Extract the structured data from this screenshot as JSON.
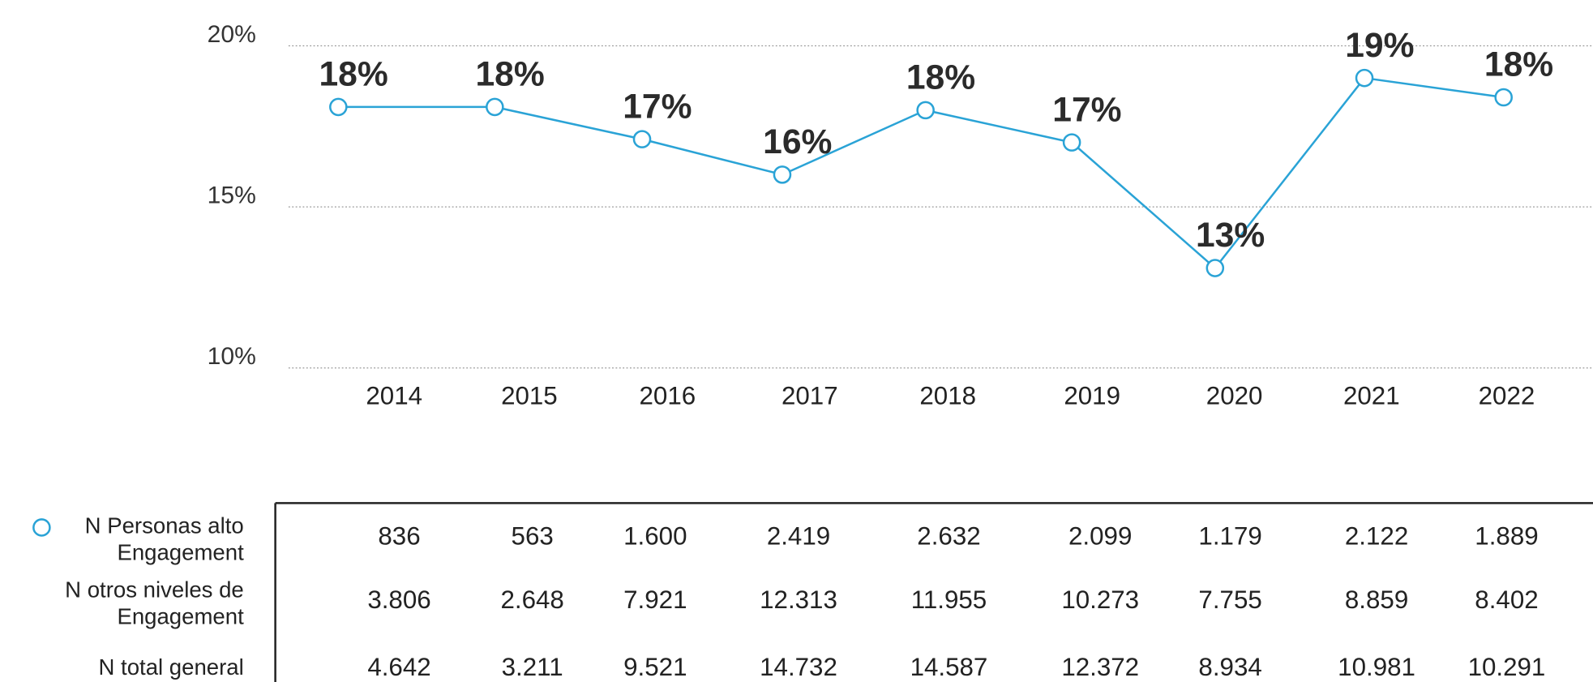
{
  "chart_data": {
    "type": "line",
    "categories": [
      "2014",
      "2015",
      "2016",
      "2017",
      "2018",
      "2019",
      "2020",
      "2021",
      "2022"
    ],
    "series": [
      {
        "name": "N Personas alto Engagement",
        "color": "#2aa3d6",
        "values": [
          18.1,
          18.1,
          17.1,
          16.0,
          18.0,
          17.0,
          13.1,
          19.0,
          18.4
        ],
        "value_labels": [
          "18%",
          "18%",
          "17%",
          "16%",
          "18%",
          "17%",
          "13%",
          "19%",
          "18%"
        ]
      }
    ],
    "ylim": [
      10,
      20
    ],
    "yticks": [
      {
        "value": 10,
        "label": "10%"
      },
      {
        "value": 15,
        "label": "15%"
      },
      {
        "value": 20,
        "label": "20%"
      }
    ],
    "grid": true
  },
  "table": {
    "rows": [
      {
        "label": [
          "N Personas alto",
          "Engagement"
        ],
        "values": [
          "836",
          "563",
          "1.600",
          "2.419",
          "2.632",
          "2.099",
          "1.179",
          "2.122",
          "1.889"
        ]
      },
      {
        "label": [
          "N  otros niveles de",
          "Engagement"
        ],
        "values": [
          "3.806",
          "2.648",
          "7.921",
          "12.313",
          "11.955",
          "10.273",
          "7.755",
          "8.859",
          "8.402"
        ]
      },
      {
        "label": [
          "N total general"
        ],
        "values": [
          "4.642",
          "3.211",
          "9.521",
          "14.732",
          "14.587",
          "12.372",
          "8.934",
          "10.981",
          "10.291"
        ]
      }
    ]
  }
}
